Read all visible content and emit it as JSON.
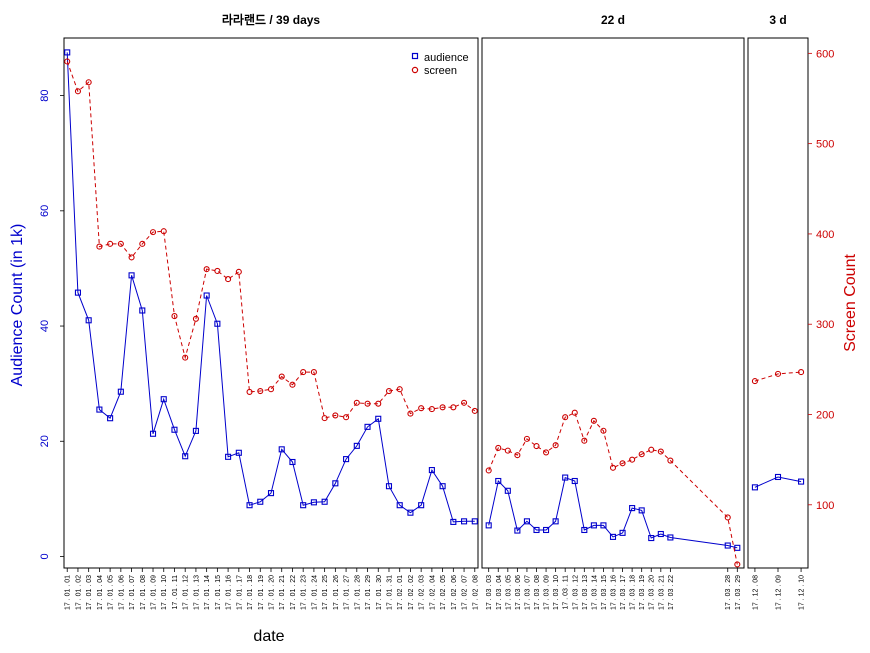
{
  "chart_data": {
    "type": "line",
    "xlabel": "date",
    "ylabel_left": "Audience Count (in 1k)",
    "ylabel_right": "Screen Count",
    "ylim_left": [
      -2,
      90
    ],
    "ylim_right": [
      30,
      617
    ],
    "yticks_left": [
      0,
      20,
      40,
      60,
      80
    ],
    "yticks_right": [
      100,
      200,
      300,
      400,
      500,
      600
    ],
    "grid": false,
    "legend_position": "top-right",
    "legend": [
      {
        "name": "audience",
        "color": "#0000cc",
        "marker": "square",
        "line": "solid"
      },
      {
        "name": "screen",
        "color": "#cc0000",
        "marker": "circle",
        "line": "dashed"
      }
    ],
    "panels": [
      {
        "title": "라라랜드 / 39 days",
        "x": [
          "17.01.01",
          "17.01.02",
          "17.01.03",
          "17.01.04",
          "17.01.05",
          "17.01.06",
          "17.01.07",
          "17.01.08",
          "17.01.09",
          "17.01.10",
          "17.01.11",
          "17.01.12",
          "17.01.13",
          "17.01.14",
          "17.01.15",
          "17.01.16",
          "17.01.17",
          "17.01.18",
          "17.01.19",
          "17.01.20",
          "17.01.21",
          "17.01.22",
          "17.01.23",
          "17.01.24",
          "17.01.25",
          "17.01.26",
          "17.01.27",
          "17.01.28",
          "17.01.29",
          "17.01.30",
          "17.01.31",
          "17.02.01",
          "17.02.02",
          "17.02.03",
          "17.02.04",
          "17.02.05",
          "17.02.06",
          "17.02.07",
          "17.02.08"
        ],
        "series": [
          {
            "name": "audience",
            "axis": "left",
            "values": [
              87.5,
              45.8,
              41.0,
              25.5,
              24.0,
              28.6,
              48.8,
              42.7,
              21.3,
              27.3,
              22.0,
              17.4,
              21.8,
              45.3,
              40.4,
              17.3,
              18.0,
              8.9,
              9.5,
              11.0,
              18.6,
              16.4,
              8.9,
              9.4,
              9.5,
              12.7,
              16.9,
              19.2,
              22.5,
              23.9,
              12.2,
              8.9,
              7.6,
              8.9,
              15.0,
              12.2,
              6.0,
              6.1,
              6.1
            ]
          },
          {
            "name": "screen",
            "axis": "right",
            "values": [
              591,
              558,
              568,
              386,
              389,
              389,
              374,
              389,
              402,
              403,
              309,
              263,
              306,
              361,
              359,
              350,
              358,
              225,
              226,
              228,
              242,
              233,
              247,
              247,
              196,
              199,
              197,
              213,
              212,
              212,
              226,
              228,
              201,
              207,
              206,
              208,
              208,
              213,
              204
            ]
          }
        ]
      },
      {
        "title": "22 d",
        "x": [
          "17.03.03",
          "17.03.04",
          "17.03.05",
          "17.03.06",
          "17.03.07",
          "17.03.08",
          "17.03.09",
          "17.03.10",
          "17.03.11",
          "17.03.12",
          "17.03.13",
          "17.03.14",
          "17.03.15",
          "17.03.16",
          "17.03.17",
          "17.03.18",
          "17.03.19",
          "17.03.20",
          "17.03.21",
          "17.03.22",
          "17.03.28",
          "17.03.29"
        ],
        "x_positions": [
          1,
          2,
          3,
          4,
          5,
          6,
          7,
          8,
          9,
          10,
          11,
          12,
          13,
          14,
          15,
          16,
          17,
          18,
          19,
          20,
          26,
          27
        ],
        "x_range": [
          0.3,
          27.7
        ],
        "series": [
          {
            "name": "audience",
            "axis": "left",
            "values": [
              5.4,
              13.1,
              11.4,
              4.5,
              6.1,
              4.6,
              4.6,
              6.1,
              13.7,
              13.1,
              4.6,
              5.4,
              5.4,
              3.4,
              4.1,
              8.4,
              8.0,
              3.2,
              3.9,
              3.3,
              1.9,
              1.5
            ]
          },
          {
            "name": "screen",
            "axis": "right",
            "values": [
              138,
              163,
              160,
              155,
              173,
              165,
              158,
              166,
              197,
              202,
              171,
              193,
              182,
              141,
              146,
              150,
              156,
              161,
              159,
              149,
              86,
              34
            ]
          }
        ]
      },
      {
        "title": "3 d",
        "x": [
          "17.12.08",
          "17.12.09",
          "17.12.10"
        ],
        "series": [
          {
            "name": "audience",
            "axis": "left",
            "values": [
              12.0,
              13.8,
              13.0
            ]
          },
          {
            "name": "screen",
            "axis": "right",
            "values": [
              237,
              245,
              247
            ]
          }
        ]
      }
    ]
  }
}
